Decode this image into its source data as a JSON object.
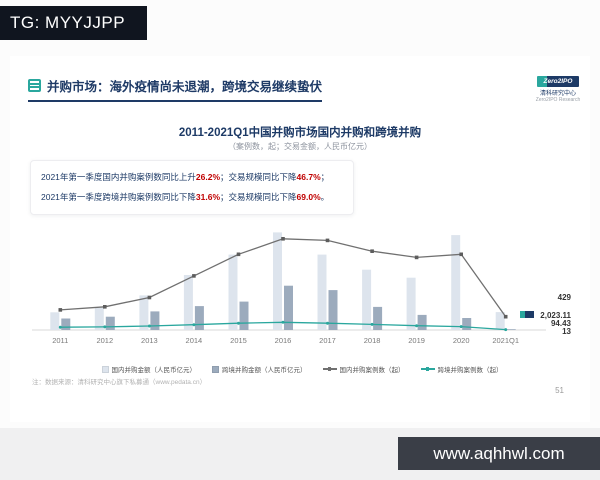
{
  "watermark_top": {
    "text": "TG: MYYJJPP"
  },
  "watermark_bottom": {
    "text": "www.aqhhwl.com"
  },
  "slide": {
    "header": {
      "title": "并购市场：海外疫情尚未退潮，跨境交易继续蛰伏"
    },
    "brand": {
      "wordmark": "Zero2IPO",
      "org_cn": "清科研究中心",
      "org_en": "Zero2IPO Research"
    },
    "chart_title": "2011-2021Q1中国并购市场国内并购和跨境并购",
    "chart_subtitle": "（案例数，起；交易金额，人民币亿元）",
    "callouts": [
      {
        "segments": [
          {
            "t": "2021年第一季度国内并购案例数同比上升",
            "em": false
          },
          {
            "t": "26.2%",
            "em": true
          },
          {
            "t": "；交易规模同比下降",
            "em": false
          },
          {
            "t": "46.7%",
            "em": true
          },
          {
            "t": "；",
            "em": false
          }
        ]
      },
      {
        "segments": [
          {
            "t": "2021年第一季度跨境并购案例数同比下降",
            "em": false
          },
          {
            "t": "31.6%",
            "em": true
          },
          {
            "t": "；交易规模同比下降",
            "em": false
          },
          {
            "t": "69.0%",
            "em": true
          },
          {
            "t": "。",
            "em": false
          }
        ]
      }
    ],
    "footnote": "注：数据来源：清科研究中心旗下私募通（www.pedata.cn）",
    "page_number": "51"
  },
  "chart_data": {
    "type": "bar",
    "subtype": "bar-line-combo",
    "title": "2011-2021Q1中国并购市场国内并购和跨境并购",
    "categories": [
      "2011",
      "2012",
      "2013",
      "2014",
      "2015",
      "2016",
      "2017",
      "2018",
      "2019",
      "2020",
      "2021Q1"
    ],
    "series": [
      {
        "name": "国内并购金额（人民币亿元）",
        "kind": "bar",
        "color": "#dde4ed",
        "values": [
          2000,
          2500,
          3900,
          6200,
          8500,
          11000,
          8500,
          6800,
          5900,
          10700,
          2023.11
        ]
      },
      {
        "name": "跨境并购金额（人民币亿元）",
        "kind": "bar",
        "color": "#9cabbd",
        "values": [
          1300,
          1500,
          2100,
          2700,
          3200,
          5000,
          4500,
          2600,
          1700,
          1350,
          94.43
        ]
      },
      {
        "name": "国内并购案例数（起）",
        "kind": "line",
        "color": "#707070",
        "values": [
          650,
          750,
          1050,
          1750,
          2450,
          2950,
          2900,
          2550,
          2350,
          2450,
          429
        ]
      },
      {
        "name": "跨境并购案例数（起）",
        "kind": "line",
        "color": "#2aa79e",
        "values": [
          90,
          100,
          130,
          170,
          220,
          250,
          220,
          180,
          140,
          110,
          13
        ]
      }
    ],
    "annotations_2021q1": [
      {
        "label": "429",
        "series": "国内并购案例数（起）"
      },
      {
        "label": "2,023.11",
        "series": "国内并购金额（人民币亿元）"
      },
      {
        "label": "94.43",
        "series": "跨境并购金额（人民币亿元）"
      },
      {
        "label": "13",
        "series": "跨境并购案例数（起）"
      }
    ],
    "axes": {
      "amount_max": 11500,
      "cases_max": 3300,
      "gridlines": false,
      "value_axis_labels_visible": false
    },
    "legend_position": "bottom"
  }
}
